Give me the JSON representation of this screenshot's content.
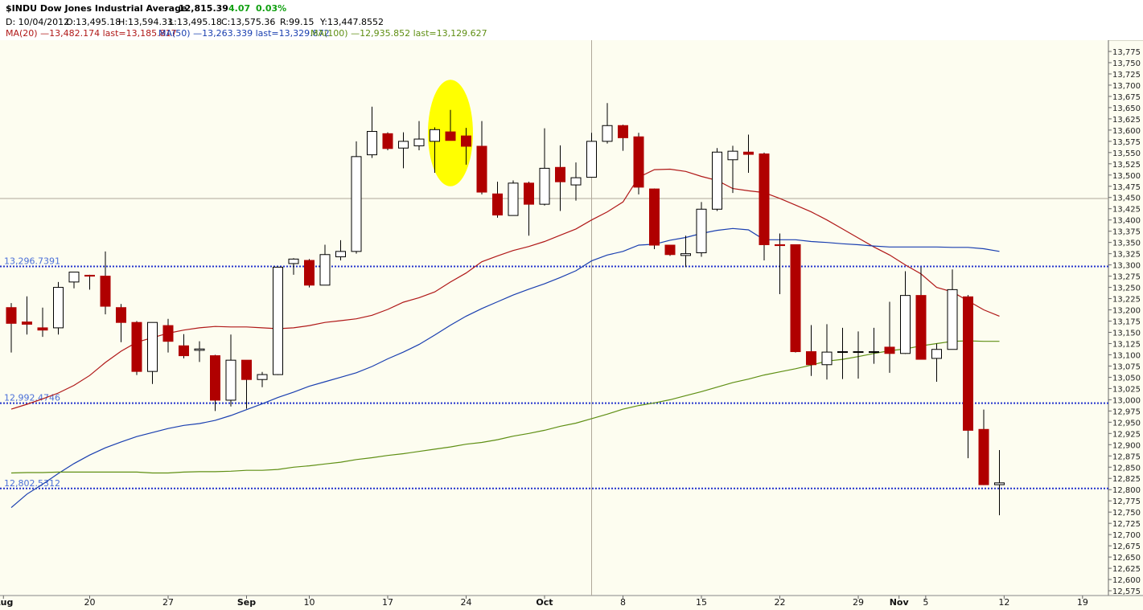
{
  "header": {
    "symbol": "$INDU Dow Jones Industrial Average",
    "last": "12,815.39",
    "change": "4.07",
    "pct": "0.03%",
    "ohlc": {
      "date": "D: 10/04/2012",
      "open": "O:13,495.18",
      "high": "H:13,594.33",
      "low": "L:13,495.18",
      "close": "C:13,575.36",
      "range": "R:99.15",
      "y": "Y:13,447.8552"
    },
    "ma20": "MA(20) —13,482.174 last=13,185.817",
    "ma50": "MA(50) —13,263.339 last=13,329.872",
    "ma100": "MA(100) —12,935.852 last=13,129.627"
  },
  "chart_data": {
    "type": "candlestick",
    "ylim": [
      12575,
      13790
    ],
    "yticks": [
      "13,775",
      "13,750",
      "13,725",
      "13,700",
      "13,675",
      "13,650",
      "13,625",
      "13,600",
      "13,575",
      "13,550",
      "13,525",
      "13,500",
      "13,475",
      "13,450",
      "13,425",
      "13,400",
      "13,375",
      "13,350",
      "13,325",
      "13,300",
      "13,275",
      "13,250",
      "13,225",
      "13,200",
      "13,175",
      "13,150",
      "13,125",
      "13,100",
      "13,075",
      "13,050",
      "13,025",
      "13,000",
      "12,975",
      "12,950",
      "12,925",
      "12,900",
      "12,875",
      "12,850",
      "12,825",
      "12,800",
      "12,775",
      "12,750",
      "12,725",
      "12,700",
      "12,675",
      "12,650",
      "12,625",
      "12,600",
      "12,575"
    ],
    "ytick_values": [
      13775,
      13750,
      13725,
      13700,
      13675,
      13650,
      13625,
      13600,
      13575,
      13550,
      13525,
      13500,
      13475,
      13450,
      13425,
      13400,
      13375,
      13350,
      13325,
      13300,
      13275,
      13250,
      13225,
      13200,
      13175,
      13150,
      13125,
      13100,
      13075,
      13050,
      13025,
      13000,
      12975,
      12950,
      12925,
      12900,
      12875,
      12850,
      12825,
      12800,
      12775,
      12750,
      12725,
      12700,
      12675,
      12650,
      12625,
      12600,
      12575
    ],
    "xticks": [
      {
        "label": "Aug",
        "bar": -0.5,
        "bold": true
      },
      {
        "label": "20",
        "bar": 5
      },
      {
        "label": "27",
        "bar": 10
      },
      {
        "label": "Sep",
        "bar": 15,
        "bold": true
      },
      {
        "label": "10",
        "bar": 19
      },
      {
        "label": "17",
        "bar": 24
      },
      {
        "label": "24",
        "bar": 29
      },
      {
        "label": "Oct",
        "bar": 34,
        "bold": true
      },
      {
        "label": "8",
        "bar": 39
      },
      {
        "label": "15",
        "bar": 44
      },
      {
        "label": "22",
        "bar": 49
      },
      {
        "label": "29",
        "bar": 54
      },
      {
        "label": "Nov",
        "bar": 56.6,
        "bold": true
      },
      {
        "label": "5",
        "bar": 58.3
      },
      {
        "label": "12",
        "bar": 63.3
      },
      {
        "label": "19",
        "bar": 68.3
      }
    ],
    "ohlc": [
      [
        13205,
        13215,
        13105,
        13170
      ],
      [
        13173,
        13230,
        13145,
        13168
      ],
      [
        13160,
        13205,
        13140,
        13155
      ],
      [
        13160,
        13262,
        13145,
        13250
      ],
      [
        13262,
        13284,
        13248,
        13284
      ],
      [
        13277,
        13278,
        13245,
        13275
      ],
      [
        13275,
        13330,
        13190,
        13208
      ],
      [
        13205,
        13213,
        13128,
        13172
      ],
      [
        13172,
        13175,
        13055,
        13063
      ],
      [
        13063,
        13172,
        13035,
        13172
      ],
      [
        13165,
        13180,
        13105,
        13130
      ],
      [
        13120,
        13146,
        13092,
        13098
      ],
      [
        13110,
        13130,
        13084,
        13113
      ],
      [
        13098,
        13100,
        12975,
        12999
      ],
      [
        12999,
        13145,
        12985,
        13088
      ],
      [
        13088,
        13088,
        12980,
        13045
      ],
      [
        13045,
        13062,
        13028,
        13056
      ],
      [
        13056,
        13295,
        13055,
        13295
      ],
      [
        13303,
        13315,
        13278,
        13313
      ],
      [
        13310,
        13313,
        13250,
        13255
      ],
      [
        13255,
        13345,
        13255,
        13323
      ],
      [
        13318,
        13355,
        13310,
        13330
      ],
      [
        13330,
        13575,
        13325,
        13541
      ],
      [
        13545,
        13652,
        13538,
        13597
      ],
      [
        13592,
        13595,
        13555,
        13559
      ],
      [
        13560,
        13595,
        13515,
        13575
      ],
      [
        13565,
        13620,
        13555,
        13580
      ],
      [
        13575,
        13606,
        13505,
        13601
      ],
      [
        13596,
        13645,
        13580,
        13577
      ],
      [
        13587,
        13605,
        13523,
        13564
      ],
      [
        13564,
        13620,
        13457,
        13462
      ],
      [
        13458,
        13485,
        13405,
        13411
      ],
      [
        13410,
        13488,
        13410,
        13482
      ],
      [
        13482,
        13485,
        13365,
        13435
      ],
      [
        13435,
        13604,
        13432,
        13515
      ],
      [
        13517,
        13566,
        13420,
        13485
      ],
      [
        13478,
        13528,
        13443,
        13494
      ],
      [
        13495,
        13594,
        13495,
        13575
      ],
      [
        13575,
        13660,
        13570,
        13610
      ],
      [
        13610,
        13612,
        13554,
        13583
      ],
      [
        13585,
        13594,
        13457,
        13473
      ],
      [
        13469,
        13470,
        13335,
        13344
      ],
      [
        13344,
        13344,
        13320,
        13323
      ],
      [
        13321,
        13365,
        13295,
        13325
      ],
      [
        13327,
        13440,
        13318,
        13424
      ],
      [
        13424,
        13560,
        13420,
        13551
      ],
      [
        13534,
        13565,
        13460,
        13553
      ],
      [
        13551,
        13590,
        13505,
        13546
      ],
      [
        13547,
        13550,
        13310,
        13345
      ],
      [
        13345,
        13370,
        13235,
        13343
      ],
      [
        13345,
        13345,
        13105,
        13107
      ],
      [
        13107,
        13166,
        13053,
        13078
      ],
      [
        13078,
        13168,
        13045,
        13106
      ],
      [
        13107,
        13160,
        13046,
        13107
      ],
      [
        13107,
        13152,
        13047,
        13107
      ],
      [
        13107,
        13160,
        13080,
        13107
      ],
      [
        13117,
        13218,
        13060,
        13103
      ],
      [
        13103,
        13286,
        13102,
        13232
      ],
      [
        13232,
        13295,
        13090,
        13090
      ],
      [
        13092,
        13125,
        13040,
        13112
      ],
      [
        13112,
        13290,
        13112,
        13245
      ],
      [
        13229,
        13233,
        12870,
        12932
      ],
      [
        12934,
        12978,
        12810,
        12811
      ],
      [
        12811,
        12888,
        12743,
        12815
      ]
    ],
    "series": [
      {
        "name": "MA(20)",
        "color": "#b01818",
        "start": 0,
        "values": [
          12979,
          12990,
          13002,
          13015,
          13032,
          13054,
          13083,
          13108,
          13128,
          13138,
          13148,
          13155,
          13160,
          13163,
          13162,
          13162,
          13160,
          13158,
          13160,
          13165,
          13172,
          13176,
          13180,
          13188,
          13201,
          13217,
          13227,
          13240,
          13262,
          13282,
          13307,
          13320,
          13332,
          13341,
          13352,
          13366,
          13380,
          13400,
          13418,
          13440,
          13495,
          13512,
          13513,
          13508,
          13497,
          13488,
          13470,
          13465,
          13461,
          13448,
          13433,
          13418,
          13400,
          13380,
          13360,
          13340,
          13322,
          13300,
          13280,
          13250,
          13240,
          13220,
          13200,
          13186
        ]
      },
      {
        "name": "MA(50)",
        "color": "#1a3fb0",
        "start": 0,
        "values": [
          12760,
          12790,
          12812,
          12836,
          12858,
          12877,
          12893,
          12906,
          12918,
          12927,
          12936,
          12943,
          12947,
          12954,
          12965,
          12978,
          12991,
          13005,
          13017,
          13030,
          13040,
          13050,
          13060,
          13074,
          13091,
          13106,
          13123,
          13144,
          13166,
          13186,
          13203,
          13218,
          13233,
          13246,
          13258,
          13272,
          13287,
          13309,
          13322,
          13330,
          13344,
          13346,
          13355,
          13361,
          13370,
          13377,
          13381,
          13378,
          13356,
          13356,
          13356,
          13352,
          13350,
          13347,
          13345,
          13342,
          13340,
          13340,
          13340,
          13340,
          13339,
          13339,
          13336,
          13330
        ]
      },
      {
        "name": "MA(100)",
        "color": "#5f8f14",
        "start": 0,
        "values": [
          12837,
          12838,
          12838,
          12839,
          12839,
          12839,
          12839,
          12839,
          12839,
          12837,
          12837,
          12839,
          12840,
          12840,
          12841,
          12843,
          12843,
          12845,
          12850,
          12853,
          12857,
          12861,
          12867,
          12871,
          12876,
          12880,
          12885,
          12890,
          12895,
          12901,
          12905,
          12911,
          12919,
          12925,
          12932,
          12941,
          12948,
          12958,
          12968,
          12979,
          12987,
          12993,
          13000,
          13009,
          13018,
          13028,
          13038,
          13046,
          13055,
          13062,
          13069,
          13077,
          13086,
          13090,
          13096,
          13103,
          13109,
          13113,
          13120,
          13125,
          13130,
          13131,
          13130,
          13130
        ]
      }
    ],
    "hlines": [
      {
        "label": "13,296.7391",
        "value": 13296.7391
      },
      {
        "label": "12,992.4746",
        "value": 12992.4746
      },
      {
        "label": "12,802.5312",
        "value": 12802.5312
      }
    ],
    "crosshair": {
      "bar": 37,
      "value": 13447.8552
    },
    "highlight_bars": [
      27,
      29
    ],
    "colors": {
      "up_fill": "#ffffff",
      "down_fill": "#b00000",
      "wick": "#000000",
      "hline": "#2233cc",
      "hline_label": "#4a6fd8",
      "crosshair": "#b0a89a",
      "highlight": "#ffff00"
    }
  }
}
